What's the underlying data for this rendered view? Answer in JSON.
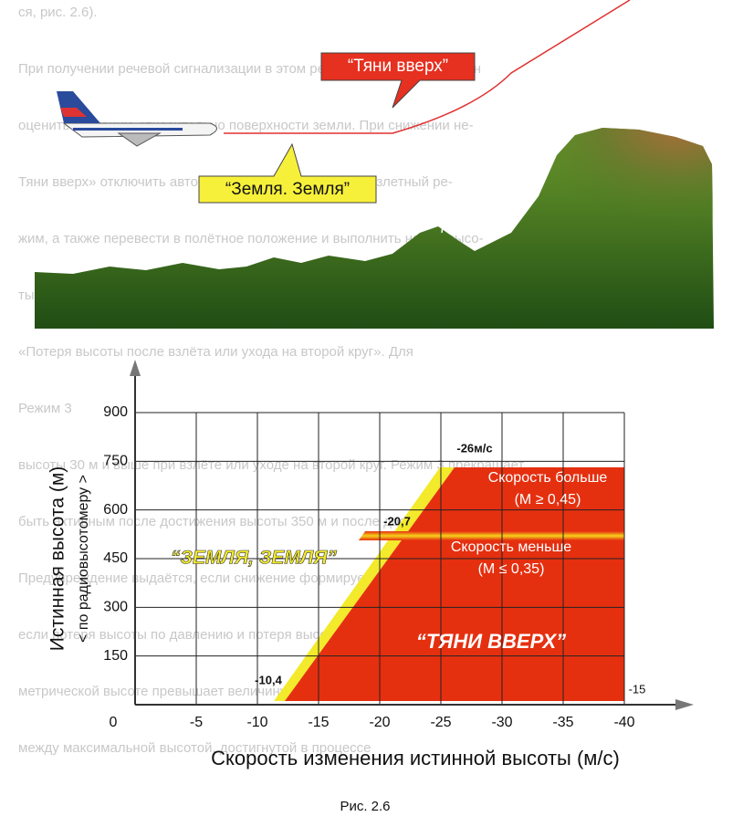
{
  "background_text": [
    "ся, рис. 2.6).",
    "При получении речевой сигнализации в этом режиме экипаж ВС должен",
    "оценить ситуацию относительно поверхности земли. При снижении не-",
    "Тяни вверх» отключить автопилот, перевести РУДы на взлетный ре-",
    "жим, а также перевести в полётное положение и выполнить набор высо-",
    "ты, увеличивая угол тангажа до значений, соответствующих скорости и углу атаки.",
    "«Потеря высоты после взлёта или ухода на второй круг». Для",
    "Режим 3",
    "высоты 30 м и выше при взлёте или уходе на второй круг. Режим 3 прекращает",
    "быть активным после достижения высоты 350 м и после достижения",
    "Предупреждение выдаётся, если снижение формируется,",
    "если потеря высоты по давлению и потеря высоты по баро-",
    "метрической высоте превышает величину, обозначенную",
    "между максимальной высотой, достигнутой в процессе"
  ],
  "illustration": {
    "pull_up": "“Тяни вверх”",
    "terrain": "“Земля. Земля”"
  },
  "chart": {
    "ylabel": "Истинная высота  (м)",
    "ylabel_sub": "< по радиовысотомеру >",
    "xlabel": "Скорость изменения истинной высоты (м/с)",
    "xticks": [
      0,
      -5,
      -10,
      -15,
      -20,
      -25,
      -30,
      -35,
      -40
    ],
    "yticks": [
      150,
      300,
      450,
      600,
      750,
      900
    ],
    "xlim": [
      0,
      -40
    ],
    "ylim": [
      0,
      900
    ],
    "annotations": {
      "rate_26": "-26м/с",
      "rate_20": "-20,7",
      "rate_10": "-10,4",
      "rate_15": "-15",
      "faster": "Скорость больше",
      "faster_m": "(M ≥ 0,45)",
      "slower": "Скорость меньше",
      "slower_m": "(M ≤ 0,35)",
      "pull_up": "“ТЯНИ ВВЕРХ”",
      "terrain": "“ЗЕМЛЯ, ЗЕМЛЯ”"
    }
  },
  "caption": "Рис. 2.6"
}
